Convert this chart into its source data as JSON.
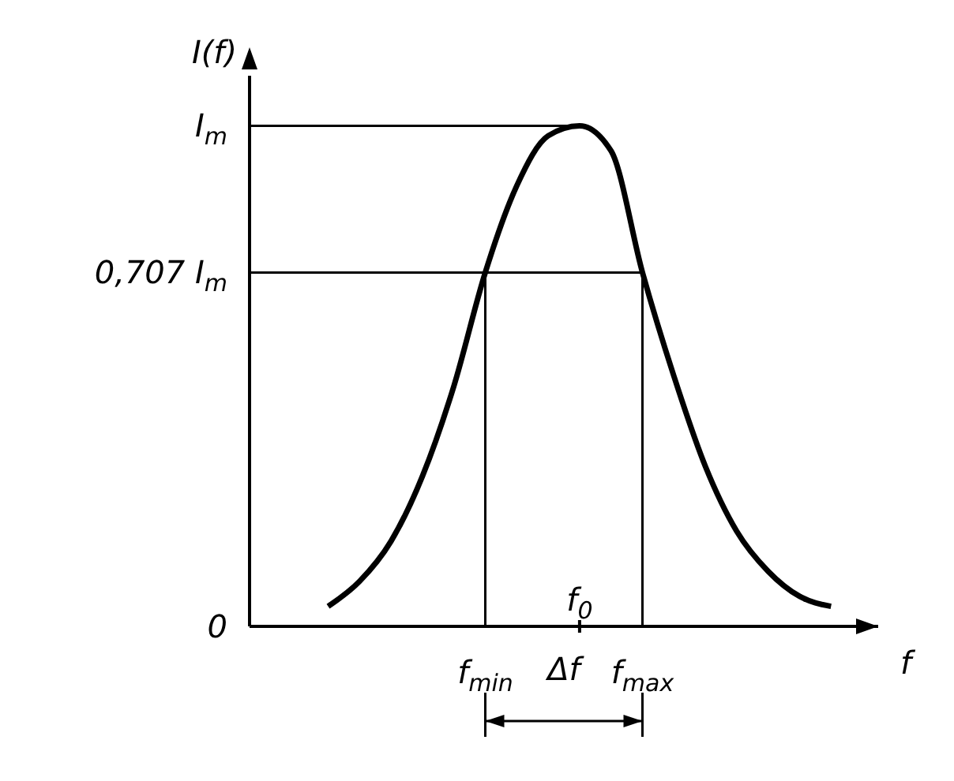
{
  "chart_data": {
    "type": "line",
    "xlabel": "f",
    "ylabel": "I(f)",
    "categories": [
      null,
      null,
      null,
      null,
      null,
      null,
      null,
      "f$_{min}$",
      null,
      null,
      "f$_{0}$",
      null,
      "f$_{max}$",
      null,
      null,
      null,
      null,
      null,
      null,
      null
    ],
    "series": [
      {
        "color": "#000000",
        "values": [
          null,
          null,
          0.04,
          0.09,
          0.17,
          0.3,
          0.48,
          0.707,
          0.88,
          0.98,
          1.0,
          0.95,
          0.707,
          0.5,
          0.32,
          0.19,
          0.11,
          0.06,
          0.04,
          null
        ]
      }
    ],
    "ylim": [
      0,
      1.1
    ],
    "yticks": [
      {
        "value": 0,
        "label": "0"
      },
      {
        "value": 0.707,
        "label": "0,707 I$_{m}$"
      },
      {
        "value": 1,
        "label": "I$_{m}$"
      }
    ],
    "ref_lines": [
      {
        "axis": "y",
        "value": 1,
        "color": "#000000"
      },
      {
        "axis": "y",
        "value": 0.707,
        "color": "#000000"
      },
      {
        "axis": "x",
        "value": "f$_{min}$",
        "color": "#000000"
      },
      {
        "axis": "x",
        "value": "f$_{max}$",
        "color": "#000000"
      }
    ],
    "annotations": [
      "Δf"
    ],
    "grid": false,
    "legend": false
  }
}
